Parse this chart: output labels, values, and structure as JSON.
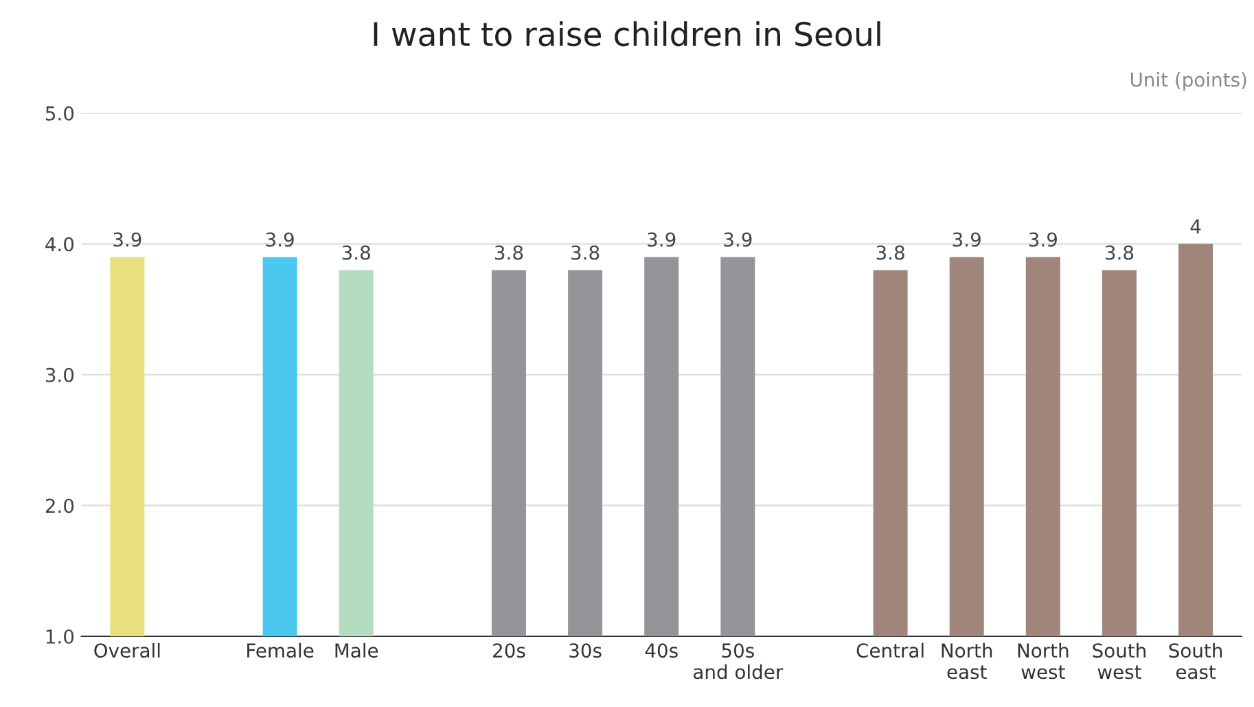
{
  "chart_data": {
    "type": "bar",
    "title": "I want to raise children in Seoul",
    "annotations": [
      "Unit (points)"
    ],
    "categories": [
      "Overall",
      null,
      "Female",
      "Male",
      null,
      "20s",
      "30s",
      "40s",
      "50s\nand older",
      null,
      "Central",
      "North\neast",
      "North\nwest",
      "South\nwest",
      "South\neast"
    ],
    "values": [
      3.9,
      null,
      3.9,
      3.8,
      null,
      3.8,
      3.8,
      3.9,
      3.9,
      null,
      3.8,
      3.9,
      3.9,
      3.8,
      4
    ],
    "colors": [
      "#e8e07e",
      null,
      "#4bc8f0",
      "#b3dcc1",
      null,
      "#939598",
      "#939598",
      "#939598",
      "#939598",
      null,
      "#a0857b",
      "#a0857b",
      "#a0857b",
      "#a0857b",
      "#a0857b"
    ],
    "ylim": [
      1,
      5
    ],
    "yticks": [
      {
        "value": 1,
        "label": "1.0"
      },
      {
        "value": 2,
        "label": "2.0"
      },
      {
        "value": 3,
        "label": "3.0"
      },
      {
        "value": 4,
        "label": "4.0"
      },
      {
        "value": 5,
        "label": "5.0"
      }
    ],
    "grid": "y",
    "data_labels": true
  }
}
